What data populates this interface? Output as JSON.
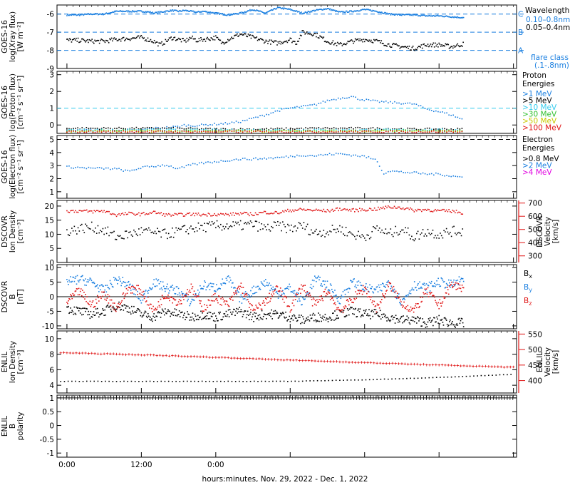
{
  "colors": {
    "black": "#000000",
    "blue": "#1a7fe0",
    "red": "#e01515",
    "green": "#30c030",
    "yellow": "#c8c800",
    "orange": "#e06a00",
    "magenta": "#e000e0",
    "cyan": "#33ccee"
  },
  "time_axis": {
    "title": "hours:minutes, Nov. 29, 2022 - Dec. 1, 2022",
    "ticks": [
      "0:00",
      "12:00",
      "0:00"
    ]
  },
  "chart_data": [
    {
      "type": "line",
      "panel": "xray",
      "ylabel": [
        "GOES-16",
        "log(Xray flux)",
        "[W m⁻²]"
      ],
      "ylim": [
        -9,
        -5.5
      ],
      "yticks": [
        -6,
        -7,
        -8,
        -9
      ],
      "x_unit": "hours since Nov. 29 0:00",
      "legend_title": "Wavelength",
      "series": [
        {
          "name": "0.10–0.8nm",
          "color": "blue",
          "x": [
            0,
            2,
            4,
            6,
            8,
            10,
            12,
            13.5,
            14,
            15,
            17,
            18,
            19,
            20,
            21,
            22,
            24,
            26,
            28,
            30,
            32,
            34,
            36,
            38,
            40,
            42,
            44,
            46,
            48,
            50,
            52,
            54,
            56,
            58,
            60,
            62,
            64
          ],
          "values": [
            -6.05,
            -6.05,
            -6.0,
            -6.0,
            -5.85,
            -5.85,
            -5.85,
            -5.9,
            -5.95,
            -5.9,
            -5.8,
            -5.85,
            -5.8,
            -5.85,
            -5.9,
            -5.85,
            -5.95,
            -6.05,
            -5.95,
            -5.75,
            -5.95,
            -5.65,
            -5.75,
            -5.95,
            -5.8,
            -5.7,
            -5.9,
            -5.85,
            -5.75,
            -5.85,
            -6.0,
            -6.05,
            -6.05,
            -6.1,
            -6.1,
            -6.15,
            -6.2
          ]
        },
        {
          "name": "0.05–0.4nm",
          "color": "black",
          "x": [
            0,
            2,
            4,
            6,
            8,
            10,
            12,
            14,
            15,
            16,
            17,
            18,
            19,
            20,
            21,
            22,
            24,
            25,
            26,
            28,
            30,
            32,
            34,
            36,
            37,
            38,
            40,
            42,
            44,
            46,
            48,
            50,
            52,
            54,
            56,
            58,
            60,
            62,
            64
          ],
          "values": [
            -7.45,
            -7.45,
            -7.5,
            -7.5,
            -7.4,
            -7.35,
            -7.3,
            -7.5,
            -7.7,
            -7.5,
            -7.3,
            -7.4,
            -7.5,
            -7.3,
            -7.45,
            -7.4,
            -7.3,
            -7.6,
            -7.4,
            -7.1,
            -7.3,
            -7.5,
            -7.6,
            -7.4,
            -7.6,
            -7.0,
            -7.1,
            -7.5,
            -7.7,
            -7.5,
            -7.4,
            -7.5,
            -7.7,
            -7.8,
            -7.9,
            -7.7,
            -7.7,
            -7.8,
            -7.65
          ]
        }
      ],
      "reference_lines": [
        {
          "label": "C",
          "value": -6
        },
        {
          "label": "B",
          "value": -7
        },
        {
          "label": "A",
          "value": -8
        }
      ],
      "annotation": [
        "flare class",
        "(.1-.8nm)"
      ]
    },
    {
      "type": "scatter",
      "panel": "proton",
      "ylabel": [
        "GOES-16",
        "log(Proton flux)",
        "[cm⁻² s⁻¹ sr⁻¹]"
      ],
      "ylim": [
        -0.5,
        3.2
      ],
      "yticks": [
        0,
        1,
        2,
        3
      ],
      "reference_line": 1,
      "legend_title": [
        "Proton",
        "Energies"
      ],
      "series": [
        {
          "name": ">1 MeV",
          "color": "blue",
          "x": [
            0,
            4,
            8,
            12,
            14,
            16,
            18,
            19,
            20,
            22,
            24,
            26,
            28,
            30,
            32,
            34,
            36,
            38,
            40,
            42,
            44,
            46,
            47,
            48,
            50,
            52,
            54,
            56,
            58,
            60,
            62,
            64
          ],
          "values": [
            -0.35,
            -0.3,
            -0.35,
            -0.3,
            -0.2,
            -0.15,
            -0.1,
            0.0,
            -0.05,
            0.0,
            0.05,
            0.1,
            0.2,
            0.4,
            0.6,
            0.85,
            1.0,
            1.1,
            1.2,
            1.45,
            1.6,
            1.7,
            1.55,
            1.5,
            1.4,
            1.35,
            1.3,
            1.25,
            0.95,
            0.8,
            0.6,
            0.3
          ]
        },
        {
          "name": ">5 MeV",
          "color": "black",
          "x": [
            0,
            8,
            16,
            24,
            32,
            40,
            48,
            56,
            64
          ],
          "values": [
            -0.2,
            -0.2,
            -0.2,
            -0.25,
            -0.25,
            -0.2,
            -0.2,
            -0.25,
            -0.25
          ]
        },
        {
          "name": ">10 MeV",
          "color": "cyan",
          "x": [
            0,
            8,
            16,
            24,
            32,
            40,
            48,
            56,
            64
          ],
          "values": [
            -0.3,
            -0.3,
            -0.3,
            -0.3,
            -0.3,
            -0.3,
            -0.3,
            -0.3,
            -0.3
          ]
        },
        {
          "name": ">30 MeV",
          "color": "green",
          "x": [
            0,
            8,
            16,
            24,
            32,
            40,
            48,
            56,
            64
          ],
          "values": [
            -0.35,
            -0.35,
            -0.35,
            -0.35,
            -0.35,
            -0.35,
            -0.35,
            -0.35,
            -0.35
          ]
        },
        {
          "name": ">50 MeV",
          "color": "yellow",
          "x": [
            0,
            8,
            16,
            24,
            32,
            40,
            48,
            56,
            64
          ],
          "values": [
            -0.38,
            -0.38,
            -0.38,
            -0.38,
            -0.38,
            -0.38,
            -0.38,
            -0.38,
            -0.38
          ]
        },
        {
          "name": ">100 MeV",
          "color": "red",
          "x": [
            0,
            8,
            16,
            24,
            32,
            40,
            48,
            56,
            64
          ],
          "values": [
            -0.4,
            -0.4,
            -0.4,
            -0.4,
            -0.4,
            -0.4,
            -0.4,
            -0.4,
            -0.4
          ]
        }
      ]
    },
    {
      "type": "scatter",
      "panel": "electron",
      "ylabel": [
        "GOES-16",
        "log(Electron flux)",
        "[cm⁻² s⁻¹ sr⁻¹]"
      ],
      "ylim": [
        0.5,
        5.3
      ],
      "yticks": [
        1,
        2,
        3,
        4,
        5
      ],
      "reference_line": 5,
      "legend_title": [
        "Electron",
        "Energies"
      ],
      "series": [
        {
          "name": ">0.8 MeV",
          "color": "black",
          "x": [],
          "values": []
        },
        {
          "name": ">2 MeV",
          "color": "blue",
          "x": [
            0,
            4,
            8,
            10,
            12,
            14,
            16,
            18,
            20,
            22,
            24,
            26,
            28,
            30,
            32,
            34,
            36,
            38,
            40,
            42,
            44,
            46,
            48,
            50,
            51,
            52,
            54,
            56,
            58,
            60,
            62,
            64
          ],
          "values": [
            2.9,
            2.8,
            2.75,
            2.55,
            2.85,
            2.95,
            3.05,
            2.75,
            3.05,
            3.2,
            3.3,
            3.4,
            3.5,
            3.5,
            3.55,
            3.6,
            3.7,
            3.8,
            3.75,
            3.85,
            3.9,
            3.8,
            3.7,
            3.4,
            2.4,
            2.6,
            2.5,
            2.45,
            2.35,
            2.35,
            2.2,
            2.1
          ]
        },
        {
          "name": ">4 MeV",
          "color": "magenta",
          "x": [],
          "values": []
        }
      ]
    },
    {
      "type": "scatter",
      "panel": "dscovr-density",
      "ylabel": [
        "DSCOVR",
        "Ion Density",
        "[cm⁻³]"
      ],
      "ylim": [
        0,
        22
      ],
      "yticks": [
        0,
        5,
        10,
        15,
        20
      ],
      "y2label": [
        "DSCOVR",
        "Velocity",
        "[km/s]"
      ],
      "y2lim": [
        250,
        720
      ],
      "y2ticks": [
        300,
        400,
        500,
        600,
        700
      ],
      "series": [
        {
          "name": "Ion Density",
          "color": "black",
          "axis": "left",
          "x": [
            0,
            2,
            4,
            6,
            8,
            10,
            12,
            14,
            16,
            18,
            20,
            22,
            24,
            26,
            28,
            30,
            32,
            34,
            36,
            38,
            40,
            42,
            44,
            46,
            48,
            50,
            52,
            54,
            56,
            58,
            60,
            62,
            64
          ],
          "values": [
            11,
            12,
            12.5,
            11.5,
            9,
            10,
            11,
            10.5,
            10,
            11,
            12,
            12.5,
            13,
            13,
            13,
            13.5,
            12,
            13,
            12,
            13,
            10.5,
            11,
            12,
            10,
            9,
            12,
            10,
            12,
            9,
            11,
            10,
            11,
            11
          ]
        },
        {
          "name": "Velocity",
          "color": "red",
          "axis": "right",
          "x": [
            0,
            2,
            4,
            6,
            8,
            10,
            12,
            14,
            16,
            18,
            20,
            22,
            24,
            26,
            28,
            30,
            32,
            34,
            36,
            38,
            40,
            42,
            44,
            46,
            48,
            50,
            52,
            54,
            56,
            58,
            60,
            62,
            64
          ],
          "values": [
            640,
            640,
            635,
            640,
            610,
            620,
            615,
            630,
            610,
            610,
            615,
            612,
            615,
            612,
            620,
            615,
            630,
            625,
            645,
            650,
            645,
            640,
            655,
            645,
            650,
            655,
            670,
            665,
            645,
            650,
            640,
            640,
            625
          ]
        }
      ]
    },
    {
      "type": "scatter",
      "panel": "dscovr-bfield",
      "ylabel": [
        "DSCOVR",
        "B",
        "[nT]"
      ],
      "ylim": [
        -11,
        11
      ],
      "yticks": [
        -10,
        -5,
        0,
        5,
        10
      ],
      "zero_line": 0,
      "series": [
        {
          "name": "B",
          "sub": "x",
          "color": "black",
          "x": [
            0,
            2,
            4,
            6,
            8,
            10,
            12,
            14,
            16,
            18,
            20,
            22,
            24,
            26,
            28,
            30,
            32,
            34,
            36,
            38,
            40,
            42,
            44,
            46,
            48,
            50,
            52,
            54,
            56,
            58,
            60,
            62,
            64
          ],
          "values": [
            -4,
            -5,
            -6,
            -5,
            -3,
            -4,
            -6,
            -7,
            -5,
            -6,
            -7,
            -6,
            -7,
            -6,
            -5,
            -7,
            -6,
            -6,
            -7,
            -8,
            -7,
            -7,
            -6,
            -5,
            -6,
            -6,
            -7,
            -8,
            -8,
            -9,
            -8,
            -9,
            -9
          ]
        },
        {
          "name": "B",
          "sub": "y",
          "color": "blue",
          "x": [
            0,
            2,
            4,
            6,
            8,
            10,
            12,
            14,
            16,
            18,
            20,
            22,
            24,
            26,
            28,
            30,
            32,
            34,
            36,
            38,
            40,
            42,
            44,
            46,
            48,
            50,
            52,
            54,
            56,
            58,
            60,
            62,
            64
          ],
          "values": [
            5,
            6,
            5,
            2,
            6,
            4,
            -1,
            5,
            3,
            2,
            -2,
            4,
            3,
            6,
            -1,
            2,
            5,
            1,
            3,
            -2,
            6,
            4,
            -1,
            5,
            3,
            2,
            5,
            -2,
            4,
            3,
            5,
            4,
            6
          ]
        },
        {
          "name": "B",
          "sub": "z",
          "color": "red",
          "x": [
            0,
            2,
            4,
            6,
            8,
            10,
            12,
            14,
            16,
            18,
            20,
            22,
            24,
            26,
            28,
            30,
            32,
            34,
            36,
            38,
            40,
            42,
            44,
            46,
            48,
            50,
            52,
            54,
            56,
            58,
            60,
            62,
            64
          ],
          "values": [
            -2,
            2,
            -3,
            1,
            -4,
            3,
            2,
            -5,
            1,
            -2,
            3,
            -4,
            0,
            -3,
            4,
            -5,
            -2,
            3,
            -4,
            4,
            -3,
            2,
            -5,
            -1,
            3,
            -4,
            4,
            -2,
            -5,
            2,
            -3,
            4,
            3
          ]
        }
      ]
    },
    {
      "type": "scatter",
      "panel": "enlil-density",
      "ylabel": [
        "ENLIL",
        "Ion Density",
        "[cm⁻³]"
      ],
      "ylim": [
        3,
        11
      ],
      "yticks": [
        4,
        6,
        8,
        10
      ],
      "y2label": [
        "ENLIL",
        "Velocity",
        "[km/s]"
      ],
      "y2lim": [
        360,
        560
      ],
      "y2ticks": [
        400,
        450,
        500,
        550
      ],
      "series": [
        {
          "name": "Ion Density",
          "color": "black",
          "axis": "left",
          "x": [
            -1,
            12,
            24,
            36,
            48,
            60,
            72
          ],
          "values": [
            4.5,
            4.5,
            4.5,
            4.5,
            4.7,
            5.0,
            5.4
          ]
        },
        {
          "name": "Velocity",
          "color": "red",
          "axis": "right",
          "x": [
            -1,
            12,
            24,
            36,
            48,
            60,
            72
          ],
          "values": [
            490,
            483,
            475,
            466,
            458,
            450,
            443
          ]
        }
      ]
    },
    {
      "type": "scatter",
      "panel": "enlil-polarity",
      "ylabel": [
        "ENLIL",
        "B",
        "polarity"
      ],
      "ylim": [
        -1.15,
        1.1
      ],
      "yticks": [
        1.0,
        0.5,
        0.0,
        -0.5,
        -1.0
      ],
      "series": [
        {
          "name": "B polarity",
          "sub": "r",
          "color": "black",
          "x": [
            -1,
            72
          ],
          "values": [
            1.0,
            1.0
          ]
        }
      ]
    }
  ]
}
